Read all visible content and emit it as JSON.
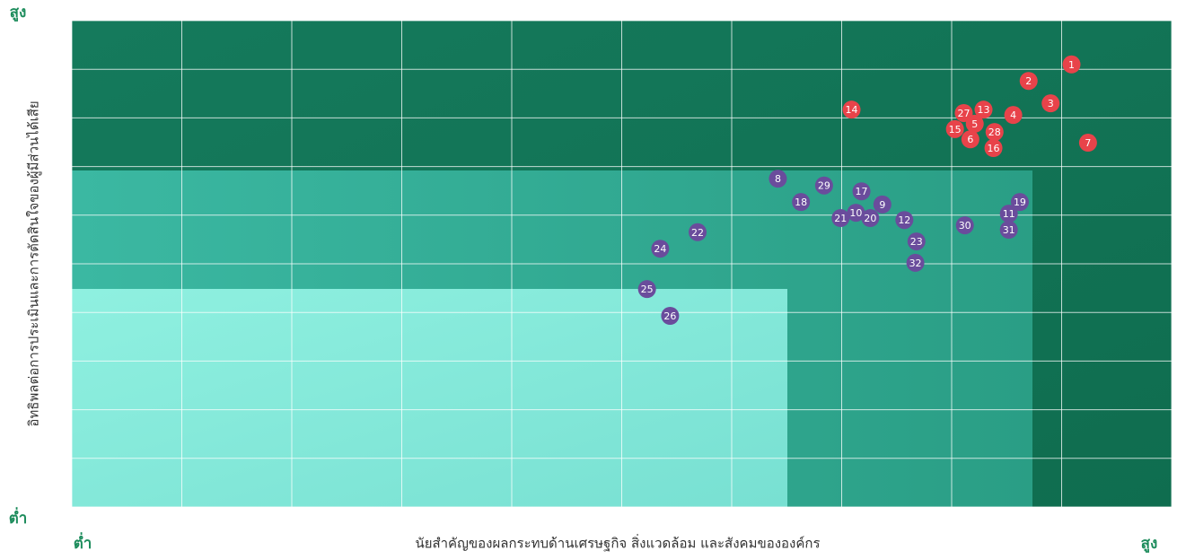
{
  "chart_data": {
    "type": "scatter",
    "x_label": "นัยสำคัญของผลกระทบด้านเศรษฐกิจ สิ่งแวดล้อม และสังคมขององค์กร",
    "y_label": "อิทธิพลต่อการประเมินและการตัดสินใจของผู้มีส่วนได้เสีย",
    "x_low": "ต่ำ",
    "x_high": "สูง",
    "y_low": "ต่ำ",
    "y_high": "สูง",
    "xlim": [
      0,
      10
    ],
    "ylim": [
      0,
      10
    ],
    "xticks": [
      0,
      1,
      2,
      3,
      4,
      5,
      6,
      7,
      8,
      9,
      10
    ],
    "yticks": [
      0,
      1,
      2,
      3,
      4,
      5,
      6,
      7,
      8,
      9,
      10
    ],
    "grid": true,
    "series": [
      {
        "color": "#e8434a",
        "labels": [
          1,
          2,
          3,
          4,
          5,
          6,
          7,
          13,
          14,
          15,
          16,
          27,
          28
        ],
        "x": [
          9.09,
          8.7,
          8.9,
          8.56,
          8.21,
          8.17,
          9.24,
          8.29,
          7.09,
          8.03,
          8.38,
          8.11,
          8.39
        ],
        "values": [
          9.1,
          8.76,
          8.3,
          8.06,
          7.88,
          7.56,
          7.49,
          8.17,
          8.17,
          7.77,
          7.38,
          8.1,
          7.71
        ]
      },
      {
        "color": "#6a4c9c",
        "labels": [
          8,
          9,
          10,
          11,
          12,
          17,
          18,
          19,
          20,
          21,
          22,
          23,
          24,
          25,
          26,
          29,
          30,
          31,
          32
        ],
        "x": [
          6.42,
          7.37,
          7.13,
          8.52,
          7.57,
          7.18,
          6.63,
          8.62,
          7.26,
          6.99,
          5.69,
          7.68,
          5.35,
          5.23,
          5.44,
          6.84,
          8.12,
          8.52,
          7.67
        ],
        "values": [
          6.75,
          6.22,
          6.05,
          6.03,
          5.9,
          6.49,
          6.27,
          6.27,
          5.94,
          5.94,
          5.65,
          5.46,
          5.31,
          4.48,
          3.93,
          6.61,
          5.79,
          5.7,
          5.02
        ]
      }
    ]
  }
}
